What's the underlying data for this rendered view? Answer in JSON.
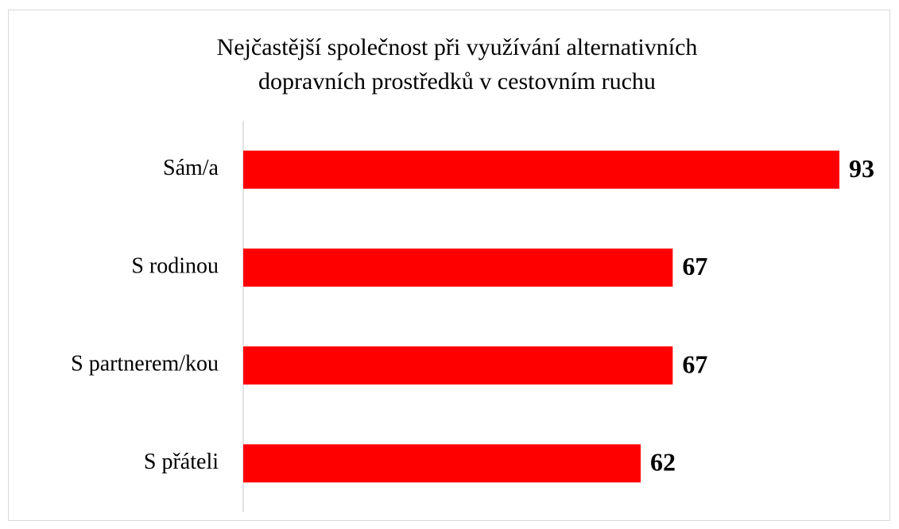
{
  "chart_data": {
    "type": "bar",
    "orientation": "horizontal",
    "title": [
      "Nejčastější společnost při využívání alternativních",
      "dopravních prostředků v cestovním ruchu"
    ],
    "categories": [
      "Sám/a",
      "S rodinou",
      "S partnerem/kou",
      "S přáteli"
    ],
    "values": [
      93,
      67,
      67,
      62
    ],
    "color": "#ff0000"
  }
}
